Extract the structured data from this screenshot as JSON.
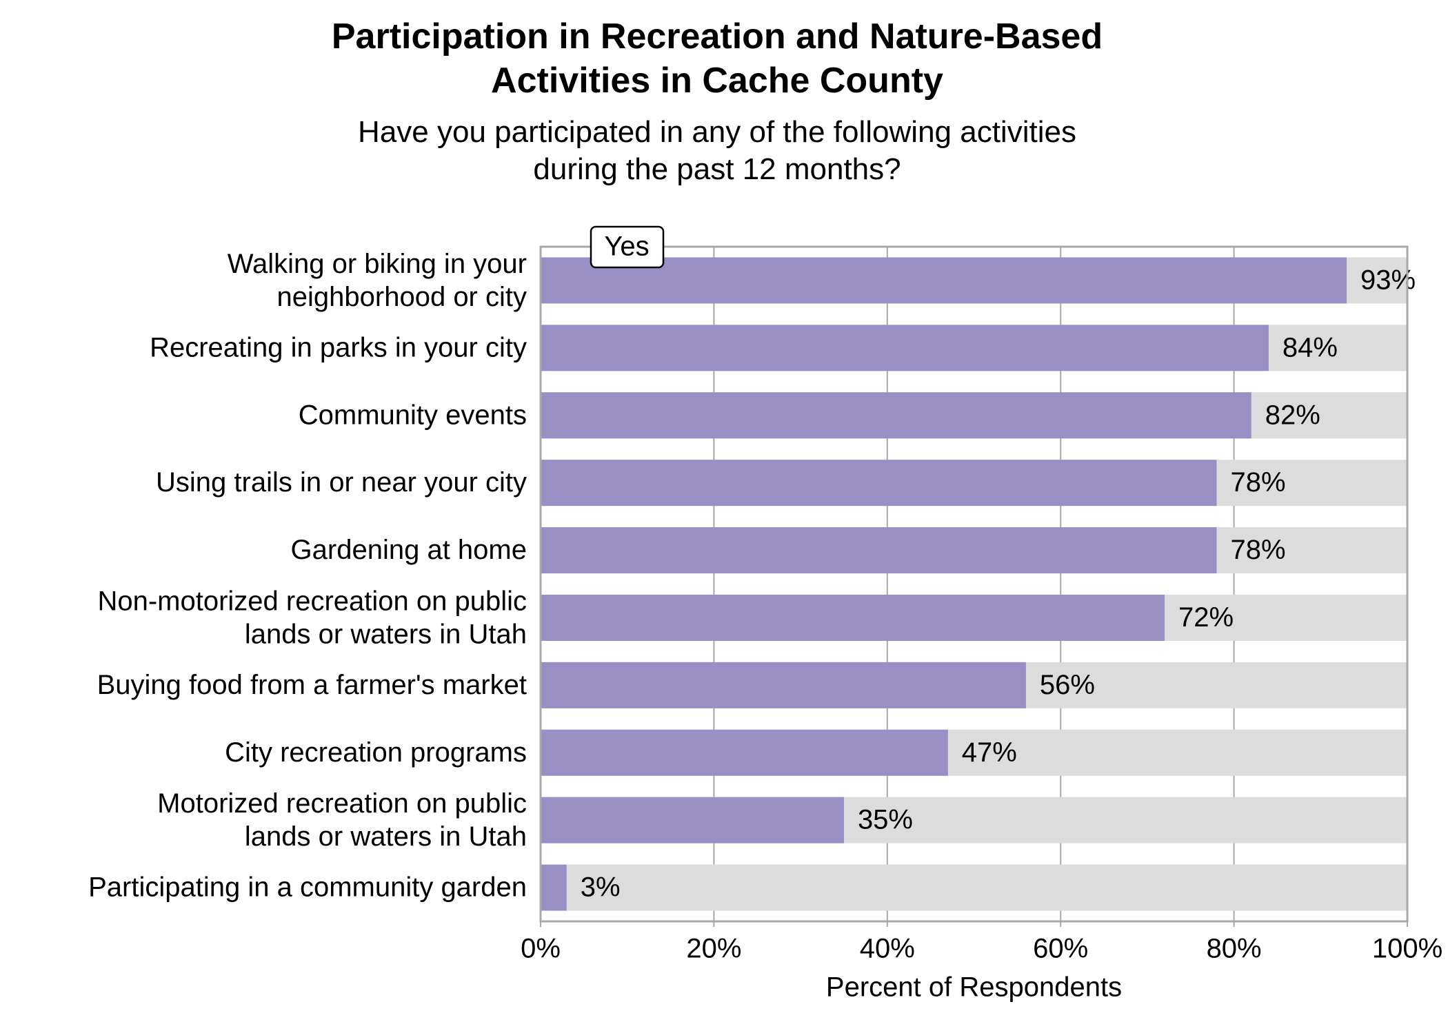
{
  "chart_data": {
    "type": "barh",
    "title": "Participation in Recreation and Nature-Based\nActivities in Cache County",
    "subtitle": "Have you participated in any of the following activities\nduring the past 12 months?",
    "categories": [
      "Walking or biking in your\nneighborhood or city",
      "Recreating in parks in your city",
      "Community events",
      "Using trails in or near your city",
      "Gardening at home",
      "Non-motorized recreation on public\nlands or waters in Utah",
      "Buying food from a farmer's market",
      "City recreation programs",
      "Motorized recreation on public\nlands or waters in Utah",
      "Participating in a community garden"
    ],
    "series": [
      {
        "name": "Yes",
        "color": "#998fc4",
        "values": [
          93,
          84,
          82,
          78,
          78,
          72,
          56,
          47,
          35,
          3
        ],
        "value_labels": [
          "93%",
          "84%",
          "82%",
          "78%",
          "78%",
          "72%",
          "56%",
          "47%",
          "35%",
          "3%"
        ]
      }
    ],
    "xlabel": "Percent of Respondents",
    "xlim": [
      0,
      100
    ],
    "xticks": [
      {
        "value": 0,
        "label": "0%"
      },
      {
        "value": 20,
        "label": "20%"
      },
      {
        "value": 40,
        "label": "40%"
      },
      {
        "value": 60,
        "label": "60%"
      },
      {
        "value": 80,
        "label": "80%"
      },
      {
        "value": 100,
        "label": "100%"
      }
    ],
    "grid": true,
    "legend": "top-left"
  }
}
